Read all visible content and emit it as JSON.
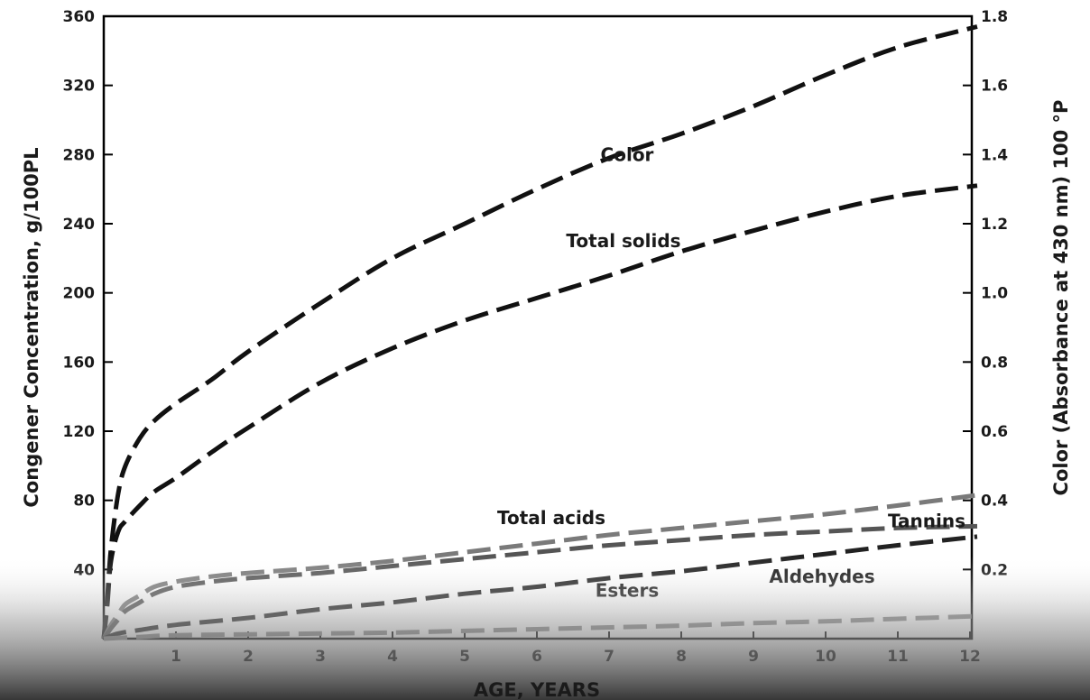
{
  "chart_data": {
    "type": "line",
    "xlabel": "AGE, YEARS",
    "ylabel": "Congener Concentration, g/100PL",
    "y2label": "Color (Absorbance at 430 nm) 100 °P",
    "xlim": [
      0,
      12.5
    ],
    "ylim": [
      0,
      360
    ],
    "y2lim": [
      0,
      1.8
    ],
    "xticks": [
      1,
      2,
      3,
      4,
      5,
      6,
      7,
      8,
      9,
      10,
      11,
      12
    ],
    "yticks": [
      40,
      80,
      120,
      160,
      200,
      240,
      280,
      320,
      360
    ],
    "y2ticks": [
      "0.2",
      "0.4",
      "0.6",
      "0.8",
      "1.0",
      "1.2",
      "1.4",
      "1.6",
      "1.8"
    ],
    "grid": false,
    "legend": "none",
    "line_style": "dashed",
    "series": [
      {
        "name": "Color",
        "axis": "right",
        "color": "#111111",
        "label_at": [
          7.25,
          1.4
        ],
        "x": [
          0,
          0.05,
          0.1,
          0.2,
          0.3,
          0.5,
          0.7,
          1,
          1.5,
          2,
          3,
          4,
          5,
          6,
          7,
          8,
          9,
          10,
          11,
          12.1
        ],
        "y": [
          0,
          0.12,
          0.26,
          0.42,
          0.5,
          0.58,
          0.63,
          0.68,
          0.75,
          0.83,
          0.97,
          1.1,
          1.2,
          1.3,
          1.39,
          1.46,
          1.54,
          1.63,
          1.71,
          1.77
        ]
      },
      {
        "name": "Total solids",
        "color": "#111111",
        "label_at": [
          7.2,
          230
        ],
        "x": [
          0,
          0.05,
          0.1,
          0.2,
          0.3,
          0.5,
          0.7,
          1,
          1.5,
          2,
          3,
          4,
          5,
          6,
          7,
          8,
          9,
          10,
          11,
          12.1
        ],
        "y": [
          0,
          20,
          45,
          62,
          68,
          77,
          85,
          93,
          108,
          122,
          148,
          168,
          184,
          197,
          210,
          224,
          236,
          247,
          256,
          262
        ]
      },
      {
        "name": "Total acids",
        "color": "#7a7a7a",
        "label_at": [
          6.2,
          70
        ],
        "x": [
          0,
          0.1,
          0.2,
          0.3,
          0.5,
          0.7,
          1,
          1.5,
          2,
          3,
          4,
          5,
          6,
          7,
          8,
          9,
          10,
          11,
          12.1
        ],
        "y": [
          0,
          8,
          14,
          20,
          25,
          30,
          33,
          36,
          38,
          41,
          45,
          50,
          55,
          60,
          64,
          68,
          72,
          77,
          83
        ]
      },
      {
        "name": "Tannins",
        "color": "#555555",
        "label_at": [
          11.4,
          68
        ],
        "x": [
          0,
          0.1,
          0.2,
          0.3,
          0.5,
          0.7,
          1,
          1.5,
          2,
          3,
          4,
          5,
          6,
          7,
          8,
          9,
          10,
          11,
          12.1
        ],
        "y": [
          0,
          6,
          11,
          16,
          21,
          26,
          30,
          33,
          35,
          38,
          42,
          46,
          50,
          54,
          57,
          60,
          62,
          64,
          65
        ]
      },
      {
        "name": "Esters",
        "color": "#222222",
        "label_at": [
          7.25,
          28
        ],
        "x": [
          0,
          0.2,
          0.5,
          1,
          2,
          3,
          4,
          5,
          6,
          7,
          8,
          9,
          10,
          11,
          12.1
        ],
        "y": [
          0,
          3,
          5,
          8,
          12,
          17,
          21,
          26,
          30,
          35,
          39,
          44,
          49,
          54,
          59
        ]
      },
      {
        "name": "Aldehydes",
        "color": "#888888",
        "label_at": [
          9.95,
          36
        ],
        "x": [
          0,
          0.5,
          1,
          2,
          3,
          4,
          5,
          6,
          7,
          8,
          9,
          10,
          11,
          12.1
        ],
        "y": [
          0,
          1,
          2,
          2.5,
          3,
          3.5,
          4.5,
          5.5,
          6.5,
          7.5,
          9,
          10,
          11.5,
          13
        ]
      }
    ]
  }
}
